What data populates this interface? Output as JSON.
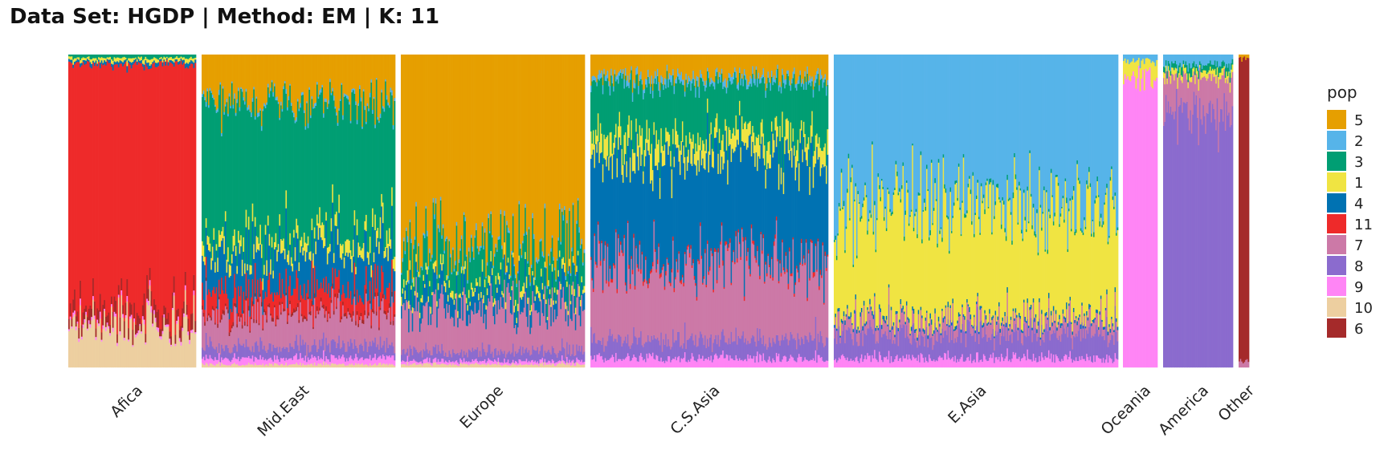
{
  "chart_data": {
    "type": "bar",
    "title": "Data Set: HGDP | Method: EM | K: 11",
    "xlabel": "",
    "ylabel": "",
    "ylim": [
      0,
      1
    ],
    "stacked": true,
    "legend": {
      "title": "pop",
      "placement": "right"
    },
    "colors": {
      "5": "#E69F00",
      "2": "#56B4E9",
      "3": "#009E73",
      "1": "#F0E442",
      "4": "#0072B2",
      "11": "#EE2A2A",
      "7": "#CC79A7",
      "8": "#8B6BCE",
      "9": "#FF85F5",
      "10": "#EDCFA0",
      "6": "#A52A2A"
    },
    "series": [
      {
        "name": "5"
      },
      {
        "name": "2"
      },
      {
        "name": "3"
      },
      {
        "name": "1"
      },
      {
        "name": "4"
      },
      {
        "name": "11"
      },
      {
        "name": "7"
      },
      {
        "name": "8"
      },
      {
        "name": "9"
      },
      {
        "name": "10"
      },
      {
        "name": "6"
      }
    ],
    "categories": [
      "Afica",
      "Mid.East",
      "Europe",
      "C.S.Asia",
      "E.Asia",
      "Oceania",
      "America",
      "Other"
    ],
    "groups": [
      {
        "label": "Afica",
        "n": 90,
        "mean": {
          "11": 0.78,
          "10": 0.14,
          "6": 0.04,
          "9": 0.01,
          "3": 0.01,
          "4": 0.01,
          "1": 0.01
        }
      },
      {
        "label": "Mid.East",
        "n": 150,
        "mean": {
          "5": 0.15,
          "3": 0.43,
          "4": 0.12,
          "11": 0.07,
          "7": 0.1,
          "1": 0.04,
          "8": 0.04,
          "9": 0.02,
          "10": 0.01,
          "2": 0.01,
          "6": 0.01
        }
      },
      {
        "label": "Europe",
        "n": 150,
        "mean": {
          "5": 0.62,
          "3": 0.11,
          "4": 0.06,
          "7": 0.13,
          "8": 0.03,
          "1": 0.02,
          "2": 0.01,
          "9": 0.01,
          "10": 0.01
        }
      },
      {
        "label": "C.S.Asia",
        "n": 200,
        "mean": {
          "4": 0.34,
          "3": 0.17,
          "5": 0.07,
          "1": 0.06,
          "7": 0.24,
          "8": 0.06,
          "9": 0.03,
          "2": 0.02,
          "11": 0.01
        }
      },
      {
        "label": "E.Asia",
        "n": 240,
        "mean": {
          "2": 0.47,
          "1": 0.36,
          "8": 0.08,
          "7": 0.04,
          "9": 0.03,
          "3": 0.01,
          "4": 0.01
        }
      },
      {
        "label": "Oceania",
        "n": 25,
        "mean": {
          "9": 0.93,
          "1": 0.05,
          "2": 0.02
        }
      },
      {
        "label": "America",
        "n": 60,
        "mean": {
          "8": 0.83,
          "7": 0.1,
          "2": 0.03,
          "3": 0.02,
          "1": 0.02
        }
      },
      {
        "label": "Other",
        "n": 8,
        "mean": {
          "6": 0.97,
          "7": 0.02,
          "5": 0.01
        }
      }
    ]
  }
}
